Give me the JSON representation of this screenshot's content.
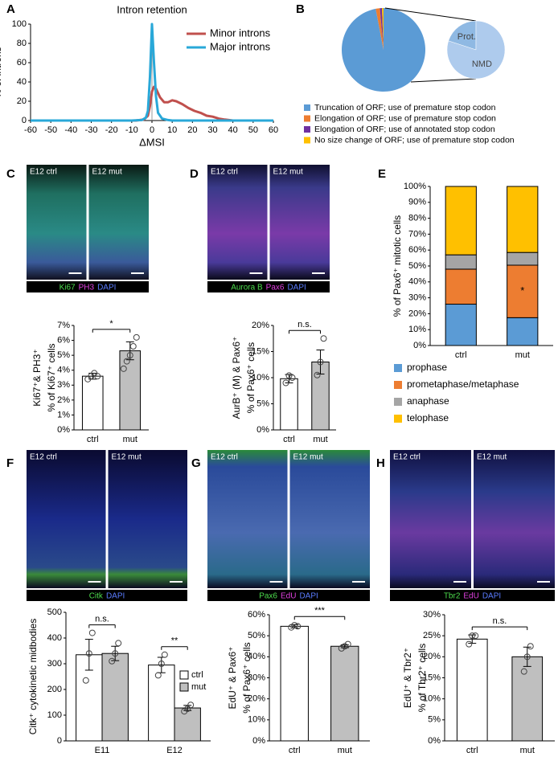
{
  "chart_data": [
    {
      "panel": "A",
      "type": "line",
      "title": "Intron retention",
      "x_label": "ΔMSI",
      "y_label": "% of introns",
      "xlim": [
        -60,
        60
      ],
      "xticks": [
        -60,
        -50,
        -40,
        -30,
        -20,
        -10,
        0,
        10,
        20,
        30,
        40,
        50,
        60
      ],
      "ylim": [
        0,
        100
      ],
      "yticks": [
        0,
        20,
        40,
        60,
        80,
        100
      ],
      "zero_line": true,
      "series": [
        {
          "name": "Minor introns",
          "color": "#c0504d",
          "x": [
            -60,
            -8,
            -4,
            -2,
            -1,
            0,
            1,
            2,
            4,
            6,
            8,
            10,
            12,
            15,
            18,
            21,
            24,
            27,
            30,
            33,
            36,
            40,
            60
          ],
          "values": [
            0,
            0,
            1,
            5,
            15,
            30,
            35,
            33,
            24,
            19,
            19,
            21,
            20,
            17,
            13,
            10,
            8,
            5,
            4,
            2,
            1,
            0,
            0
          ]
        },
        {
          "name": "Major introns",
          "color": "#29a8d8",
          "x": [
            -60,
            -10,
            -5,
            -3,
            -2,
            -1,
            0,
            1,
            2,
            3,
            5,
            8,
            10,
            60
          ],
          "values": [
            0,
            0,
            0.5,
            3,
            10,
            45,
            100,
            60,
            25,
            8,
            2,
            0.5,
            0,
            0
          ]
        }
      ]
    },
    {
      "panel": "B",
      "type": "pie",
      "categories": [
        "Truncation of ORF; use of premature stop codon",
        "Elongation of ORF; use of premature stop codon",
        "Elongation of ORF; use of annotated stop codon",
        "No size change of ORF; use of premature stop codon"
      ],
      "values": [
        97,
        1.6,
        0.8,
        0.6
      ],
      "colors": [
        "#5b9bd5",
        "#ed7d31",
        "#7030a0",
        "#ffc000"
      ],
      "inset": {
        "labels": [
          "Prot.",
          "NMD"
        ],
        "values": [
          20,
          80
        ],
        "colors": [
          "#8fb9e3",
          "#aecbed"
        ]
      }
    },
    {
      "panel": "C",
      "type": "bar",
      "images": [
        "E12 ctrl",
        "E12 mut"
      ],
      "stain": [
        {
          "text": "Ki67",
          "color": "#4ddc4d"
        },
        {
          "text": "PH3",
          "color": "#e040e0"
        },
        {
          "text": "DAPI",
          "color": "#5a7cff"
        }
      ],
      "categories": [
        "ctrl",
        "mut"
      ],
      "values": [
        3.6,
        5.3
      ],
      "errors": [
        0.2,
        0.6
      ],
      "colors": [
        "#ffffff",
        "#bfbfbf"
      ],
      "points": [
        [
          3.4,
          3.6,
          3.8,
          3.6
        ],
        [
          4.1,
          4.6,
          5.0,
          5.6,
          6.2
        ]
      ],
      "significance": "*",
      "y_label": [
        "Ki67⁺& PH3⁺",
        "% of Ki67⁺ cells"
      ],
      "ylim": [
        0,
        7
      ],
      "yticks": [
        {
          "value": 0,
          "label": "0%"
        },
        {
          "value": 1,
          "label": "1%"
        },
        {
          "value": 2,
          "label": "2%"
        },
        {
          "value": 3,
          "label": "3%"
        },
        {
          "value": 4,
          "label": "4%"
        },
        {
          "value": 5,
          "label": "5%"
        },
        {
          "value": 6,
          "label": "6%"
        },
        {
          "value": 7,
          "label": "7%"
        }
      ]
    },
    {
      "panel": "D",
      "type": "bar",
      "images": [
        "E12 ctrl",
        "E12 mut"
      ],
      "stain": [
        {
          "text": "Aurora B",
          "color": "#4ddc4d"
        },
        {
          "text": "Pax6",
          "color": "#e040e0"
        },
        {
          "text": "DAPI",
          "color": "#5a7cff"
        }
      ],
      "categories": [
        "ctrl",
        "mut"
      ],
      "values": [
        9.8,
        13
      ],
      "errors": [
        0.8,
        2.3
      ],
      "colors": [
        "#ffffff",
        "#bfbfbf"
      ],
      "points": [
        [
          9,
          10.4,
          10
        ],
        [
          10.5,
          13,
          17.5
        ]
      ],
      "significance": "n.s.",
      "y_label": [
        "AurB⁺ (M) & Pax6⁺",
        "% of Pax6⁺ cells"
      ],
      "ylim": [
        0,
        20
      ],
      "yticks": [
        {
          "value": 0,
          "label": "0%"
        },
        {
          "value": 5,
          "label": "5%"
        },
        {
          "value": 10,
          "label": "10%"
        },
        {
          "value": 15,
          "label": "15%"
        },
        {
          "value": 20,
          "label": "20%"
        }
      ]
    },
    {
      "panel": "E",
      "type": "stacked_bar",
      "categories": [
        "ctrl",
        "mut"
      ],
      "y_label": "% of Pax6⁺ mitotic cells",
      "annotation": "*",
      "series": [
        {
          "name": "prophase",
          "color": "#5b9bd5",
          "values": [
            26,
            17.5
          ]
        },
        {
          "name": "prometaphase/metaphase",
          "color": "#ed7d31",
          "values": [
            22,
            33
          ]
        },
        {
          "name": "anaphase",
          "color": "#a5a5a5",
          "values": [
            9,
            8
          ]
        },
        {
          "name": "telophase",
          "color": "#ffc000",
          "values": [
            43,
            41.5
          ]
        }
      ],
      "ylim": [
        0,
        100
      ],
      "yticks": [
        {
          "value": 0,
          "label": "0%"
        },
        {
          "value": 10,
          "label": "10%"
        },
        {
          "value": 20,
          "label": "20%"
        },
        {
          "value": 30,
          "label": "30%"
        },
        {
          "value": 40,
          "label": "40%"
        },
        {
          "value": 50,
          "label": "50%"
        },
        {
          "value": 60,
          "label": "60%"
        },
        {
          "value": 70,
          "label": "70%"
        },
        {
          "value": 80,
          "label": "80%"
        },
        {
          "value": 90,
          "label": "90%"
        },
        {
          "value": 100,
          "label": "100%"
        }
      ]
    },
    {
      "panel": "F",
      "type": "grouped_bar",
      "images": [
        "E12 ctrl",
        "E12 mut"
      ],
      "stain": [
        {
          "text": "Citk",
          "color": "#4ddc4d"
        },
        {
          "text": "DAPI",
          "color": "#5a7cff"
        }
      ],
      "categories": [
        "E11",
        "E12"
      ],
      "y_label": "Citk⁺ cytokinetic midbodies",
      "significance": [
        "n.s.",
        "**"
      ],
      "series": [
        {
          "name": "ctrl",
          "color": "#ffffff",
          "values": [
            335,
            295
          ],
          "errors": [
            60,
            30
          ],
          "points": [
            [
              235,
              340,
              420
            ],
            [
              255,
              300,
              335
            ]
          ]
        },
        {
          "name": "mut",
          "color": "#bfbfbf",
          "values": [
            340,
            128
          ],
          "errors": [
            28,
            10
          ],
          "points": [
            [
              310,
              340,
              380
            ],
            [
              115,
              125,
              140
            ]
          ]
        }
      ],
      "ylim": [
        0,
        500
      ],
      "yticks": [
        0,
        100,
        200,
        300,
        400,
        500
      ]
    },
    {
      "panel": "G",
      "type": "bar",
      "images": [
        "E12 ctrl",
        "E12 mut"
      ],
      "stain": [
        {
          "text": "Pax6",
          "color": "#4ddc4d"
        },
        {
          "text": "EdU",
          "color": "#e040e0"
        },
        {
          "text": "DAPI",
          "color": "#5a7cff"
        }
      ],
      "categories": [
        "ctrl",
        "mut"
      ],
      "values": [
        54.5,
        45
      ],
      "errors": [
        0.8,
        0.7
      ],
      "colors": [
        "#ffffff",
        "#bfbfbf"
      ],
      "points": [
        [
          54,
          55,
          54.5
        ],
        [
          44,
          45,
          46
        ]
      ],
      "significance": "***",
      "y_label": [
        "EdU⁺ & Pax6⁺",
        "% of Pax6⁺ cells"
      ],
      "ylim": [
        0,
        60
      ],
      "yticks": [
        {
          "value": 0,
          "label": "0%"
        },
        {
          "value": 10,
          "label": "10%"
        },
        {
          "value": 20,
          "label": "20%"
        },
        {
          "value": 30,
          "label": "30%"
        },
        {
          "value": 40,
          "label": "40%"
        },
        {
          "value": 50,
          "label": "50%"
        },
        {
          "value": 60,
          "label": "60%"
        }
      ]
    },
    {
      "panel": "H",
      "type": "bar",
      "images": [
        "E12 ctrl",
        "E12 mut"
      ],
      "stain": [
        {
          "text": "Tbr2",
          "color": "#4ddc4d"
        },
        {
          "text": "EdU",
          "color": "#e040e0"
        },
        {
          "text": "DAPI",
          "color": "#5a7cff"
        }
      ],
      "categories": [
        "ctrl",
        "mut"
      ],
      "values": [
        24.2,
        20
      ],
      "errors": [
        1,
        2.3
      ],
      "colors": [
        "#ffffff",
        "#bfbfbf"
      ],
      "points": [
        [
          23,
          25,
          25
        ],
        [
          16.5,
          20,
          22.5
        ]
      ],
      "significance": "n.s.",
      "y_label": [
        "EdU⁺ & Tbr2⁺",
        "% of Tbr2⁺ cells"
      ],
      "ylim": [
        0,
        30
      ],
      "yticks": [
        {
          "value": 0,
          "label": "0%"
        },
        {
          "value": 5,
          "label": "5%"
        },
        {
          "value": 10,
          "label": "10%"
        },
        {
          "value": 15,
          "label": "15%"
        },
        {
          "value": 20,
          "label": "20%"
        },
        {
          "value": 25,
          "label": "25%"
        },
        {
          "value": 30,
          "label": "30%"
        }
      ]
    }
  ]
}
